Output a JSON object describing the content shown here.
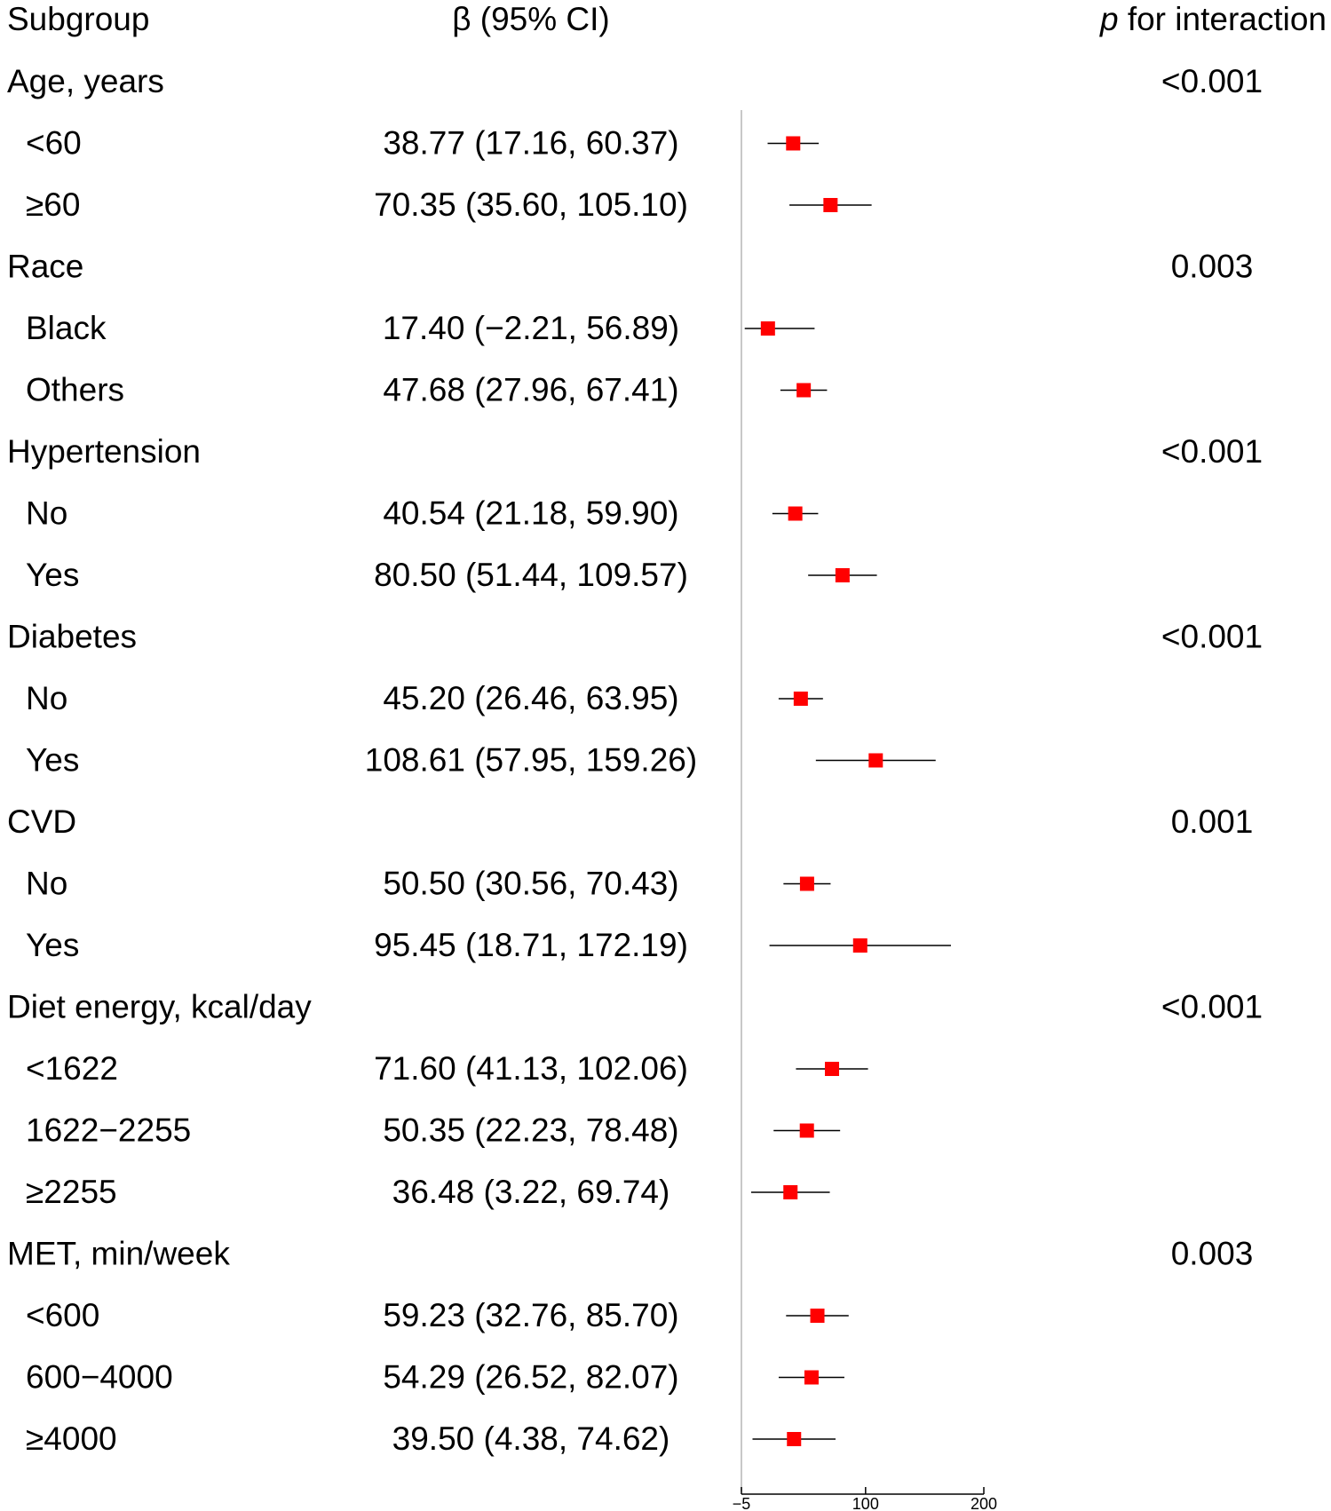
{
  "headers": {
    "subgroup": "Subgroup",
    "beta": "β (95% CI)",
    "p_italic": "p",
    "p_rest": " for interaction"
  },
  "chart_data": {
    "type": "forest",
    "title": "",
    "x_axis": {
      "min": -5,
      "max": 200,
      "reference_line": -5,
      "ticks": [
        -5,
        100,
        200
      ],
      "tick_labels": [
        "−5",
        "100",
        "200"
      ]
    },
    "marker_color": "#ff0000",
    "line_color": "#000000",
    "groups": [
      {
        "label": "Age, years",
        "p_interaction": "<0.001",
        "rows": [
          {
            "label": "<60",
            "beta": 38.77,
            "lower": 17.16,
            "upper": 60.37,
            "text": "38.77 (17.16, 60.37)"
          },
          {
            "label": "≥60",
            "beta": 70.35,
            "lower": 35.6,
            "upper": 105.1,
            "text": "70.35 (35.60, 105.10)"
          }
        ]
      },
      {
        "label": "Race",
        "p_interaction": "0.003",
        "rows": [
          {
            "label": "Black",
            "beta": 17.4,
            "lower": -2.21,
            "upper": 56.89,
            "text": "17.40 (−2.21, 56.89)"
          },
          {
            "label": "Others",
            "beta": 47.68,
            "lower": 27.96,
            "upper": 67.41,
            "text": "47.68 (27.96, 67.41)"
          }
        ]
      },
      {
        "label": "Hypertension",
        "p_interaction": "<0.001",
        "rows": [
          {
            "label": "No",
            "beta": 40.54,
            "lower": 21.18,
            "upper": 59.9,
            "text": "40.54 (21.18, 59.90)"
          },
          {
            "label": "Yes",
            "beta": 80.5,
            "lower": 51.44,
            "upper": 109.57,
            "text": "80.50 (51.44, 109.57)"
          }
        ]
      },
      {
        "label": "Diabetes",
        "p_interaction": "<0.001",
        "rows": [
          {
            "label": "No",
            "beta": 45.2,
            "lower": 26.46,
            "upper": 63.95,
            "text": "45.20 (26.46, 63.95)"
          },
          {
            "label": "Yes",
            "beta": 108.61,
            "lower": 57.95,
            "upper": 159.26,
            "text": "108.61 (57.95, 159.26)"
          }
        ]
      },
      {
        "label": "CVD",
        "p_interaction": "0.001",
        "rows": [
          {
            "label": "No",
            "beta": 50.5,
            "lower": 30.56,
            "upper": 70.43,
            "text": "50.50 (30.56, 70.43)"
          },
          {
            "label": "Yes",
            "beta": 95.45,
            "lower": 18.71,
            "upper": 172.19,
            "text": "95.45 (18.71, 172.19)"
          }
        ]
      },
      {
        "label": "Diet energy, kcal/day",
        "p_interaction": "<0.001",
        "rows": [
          {
            "label": "<1622",
            "beta": 71.6,
            "lower": 41.13,
            "upper": 102.06,
            "text": "71.60 (41.13, 102.06)"
          },
          {
            "label": "1622−2255",
            "beta": 50.35,
            "lower": 22.23,
            "upper": 78.48,
            "text": "50.35 (22.23, 78.48)"
          },
          {
            "label": "≥2255",
            "beta": 36.48,
            "lower": 3.22,
            "upper": 69.74,
            "text": "36.48 (3.22, 69.74)"
          }
        ]
      },
      {
        "label": "MET, min/week",
        "p_interaction": "0.003",
        "rows": [
          {
            "label": "<600",
            "beta": 59.23,
            "lower": 32.76,
            "upper": 85.7,
            "text": "59.23 (32.76, 85.70)"
          },
          {
            "label": "600−4000",
            "beta": 54.29,
            "lower": 26.52,
            "upper": 82.07,
            "text": "54.29 (26.52, 82.07)"
          },
          {
            "label": "≥4000",
            "beta": 39.5,
            "lower": 4.38,
            "upper": 74.62,
            "text": "39.50 (4.38, 74.62)"
          }
        ]
      }
    ]
  }
}
